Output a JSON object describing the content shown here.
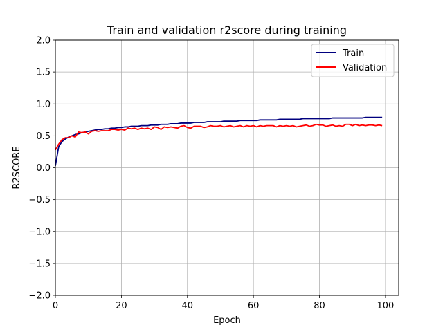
{
  "chart_data": {
    "type": "line",
    "title": "Train and validation r2score during training",
    "xlabel": "Epoch",
    "ylabel": "R2SCORE",
    "xlim": [
      0,
      104
    ],
    "ylim": [
      -2.0,
      2.0
    ],
    "xticks": [
      0,
      20,
      40,
      60,
      80,
      100
    ],
    "yticks": [
      -2.0,
      -1.5,
      -1.0,
      -0.5,
      0.0,
      0.5,
      1.0,
      1.5,
      2.0
    ],
    "xtick_labels": [
      "0",
      "20",
      "40",
      "60",
      "80",
      "100"
    ],
    "ytick_labels": [
      "−2.0",
      "−1.5",
      "−1.0",
      "−0.5",
      "0.0",
      "0.5",
      "1.0",
      "1.5",
      "2.0"
    ],
    "grid": true,
    "legend_position": "top-right",
    "x": [
      0,
      1,
      2,
      3,
      4,
      5,
      6,
      7,
      8,
      9,
      10,
      11,
      12,
      13,
      14,
      15,
      16,
      17,
      18,
      19,
      20,
      21,
      22,
      23,
      24,
      25,
      26,
      27,
      28,
      29,
      30,
      31,
      32,
      33,
      34,
      35,
      36,
      37,
      38,
      39,
      40,
      41,
      42,
      43,
      44,
      45,
      46,
      47,
      48,
      49,
      50,
      51,
      52,
      53,
      54,
      55,
      56,
      57,
      58,
      59,
      60,
      61,
      62,
      63,
      64,
      65,
      66,
      67,
      68,
      69,
      70,
      71,
      72,
      73,
      74,
      75,
      76,
      77,
      78,
      79,
      80,
      81,
      82,
      83,
      84,
      85,
      86,
      87,
      88,
      89,
      90,
      91,
      92,
      93,
      94,
      95,
      96,
      97,
      98,
      99
    ],
    "series": [
      {
        "name": "Train",
        "color": "#00007f",
        "values": [
          0.03,
          0.33,
          0.41,
          0.45,
          0.48,
          0.5,
          0.52,
          0.53,
          0.55,
          0.56,
          0.57,
          0.58,
          0.59,
          0.6,
          0.6,
          0.61,
          0.61,
          0.62,
          0.62,
          0.63,
          0.63,
          0.64,
          0.64,
          0.65,
          0.65,
          0.65,
          0.66,
          0.66,
          0.66,
          0.67,
          0.67,
          0.67,
          0.68,
          0.68,
          0.68,
          0.69,
          0.69,
          0.69,
          0.7,
          0.7,
          0.7,
          0.7,
          0.71,
          0.71,
          0.71,
          0.71,
          0.72,
          0.72,
          0.72,
          0.72,
          0.72,
          0.73,
          0.73,
          0.73,
          0.73,
          0.73,
          0.74,
          0.74,
          0.74,
          0.74,
          0.74,
          0.74,
          0.75,
          0.75,
          0.75,
          0.75,
          0.75,
          0.75,
          0.76,
          0.76,
          0.76,
          0.76,
          0.76,
          0.76,
          0.76,
          0.77,
          0.77,
          0.77,
          0.77,
          0.77,
          0.77,
          0.77,
          0.77,
          0.77,
          0.78,
          0.78,
          0.78,
          0.78,
          0.78,
          0.78,
          0.78,
          0.78,
          0.78,
          0.78,
          0.79,
          0.79,
          0.79,
          0.79,
          0.79,
          0.79
        ]
      },
      {
        "name": "Validation",
        "color": "#ff0000",
        "values": [
          0.28,
          0.37,
          0.44,
          0.47,
          0.47,
          0.5,
          0.48,
          0.56,
          0.55,
          0.56,
          0.53,
          0.57,
          0.58,
          0.57,
          0.58,
          0.58,
          0.58,
          0.6,
          0.6,
          0.59,
          0.6,
          0.59,
          0.62,
          0.61,
          0.62,
          0.6,
          0.62,
          0.61,
          0.62,
          0.6,
          0.64,
          0.63,
          0.6,
          0.64,
          0.63,
          0.64,
          0.63,
          0.62,
          0.65,
          0.66,
          0.63,
          0.62,
          0.65,
          0.65,
          0.65,
          0.63,
          0.64,
          0.66,
          0.65,
          0.65,
          0.66,
          0.64,
          0.65,
          0.66,
          0.64,
          0.65,
          0.66,
          0.64,
          0.66,
          0.65,
          0.66,
          0.64,
          0.66,
          0.65,
          0.66,
          0.66,
          0.66,
          0.64,
          0.66,
          0.65,
          0.66,
          0.65,
          0.66,
          0.64,
          0.65,
          0.66,
          0.67,
          0.65,
          0.66,
          0.68,
          0.67,
          0.67,
          0.65,
          0.66,
          0.67,
          0.65,
          0.66,
          0.65,
          0.68,
          0.68,
          0.66,
          0.68,
          0.66,
          0.67,
          0.66,
          0.67,
          0.67,
          0.66,
          0.67,
          0.66
        ]
      }
    ]
  }
}
